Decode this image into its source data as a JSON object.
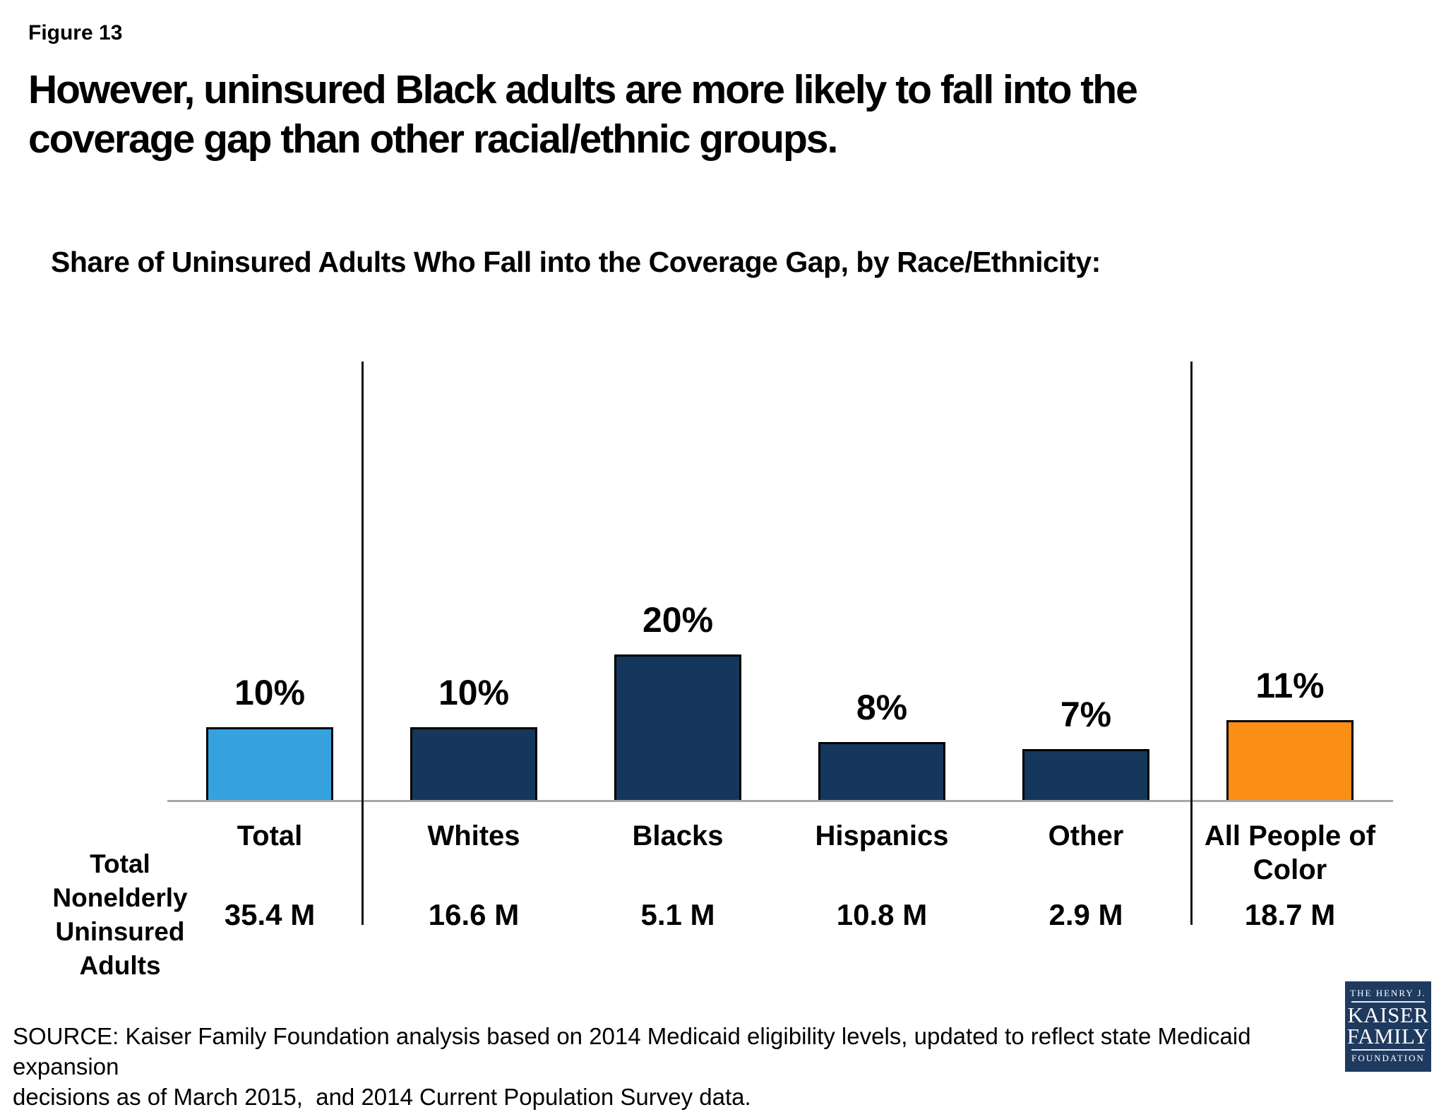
{
  "header": {
    "figure_label": "Figure 13",
    "title_lines": [
      "However, uninsured Black adults are more likely to fall into the",
      "coverage gap than other racial/ethnic groups."
    ],
    "subtitle": "Share of Uninsured Adults Who Fall into the Coverage Gap, by Race/Ethnicity:"
  },
  "chart_data": {
    "type": "bar",
    "title": "Share of Uninsured Adults Who Fall into the Coverage Gap, by Race/Ethnicity:",
    "categories": [
      "Total",
      "Whites",
      "Blacks",
      "Hispanics",
      "Other",
      "All People of Color"
    ],
    "values": [
      10,
      10,
      20,
      8,
      7,
      11
    ],
    "value_labels": [
      "10%",
      "10%",
      "20%",
      "8%",
      "7%",
      "11%"
    ],
    "counts": [
      "35.4 M",
      "16.6 M",
      "5.1 M",
      "10.8 M",
      "2.9 M",
      "18.7 M"
    ],
    "count_row_label": "Total Nonelderly Uninsured Adults",
    "bar_colors": [
      "#35a2df",
      "#16375c",
      "#16375c",
      "#16375c",
      "#16375c",
      "#fb8e14"
    ],
    "unit": "%",
    "ylim": [
      0,
      22
    ],
    "grid": false,
    "legend": "none",
    "group_dividers_after": [
      "Total",
      "Other"
    ],
    "axis_color": "#a6a6a6"
  },
  "footer": {
    "source_lines": [
      "SOURCE: Kaiser Family Foundation analysis based on 2014 Medicaid eligibility levels, updated to reflect state Medicaid expansion",
      "decisions as of March 2015,  and 2014 Current Population Survey data."
    ]
  },
  "logo": {
    "line1": "THE HENRY J.",
    "line2": "KAISER",
    "line3": "FAMILY",
    "line4": "FOUNDATION"
  },
  "colors": {
    "highlight_blue": "#35a2df",
    "navy": "#16375c",
    "orange": "#fb8e14",
    "logo_navy": "#1f3a5f",
    "baseline_gray": "#a6a6a6"
  }
}
